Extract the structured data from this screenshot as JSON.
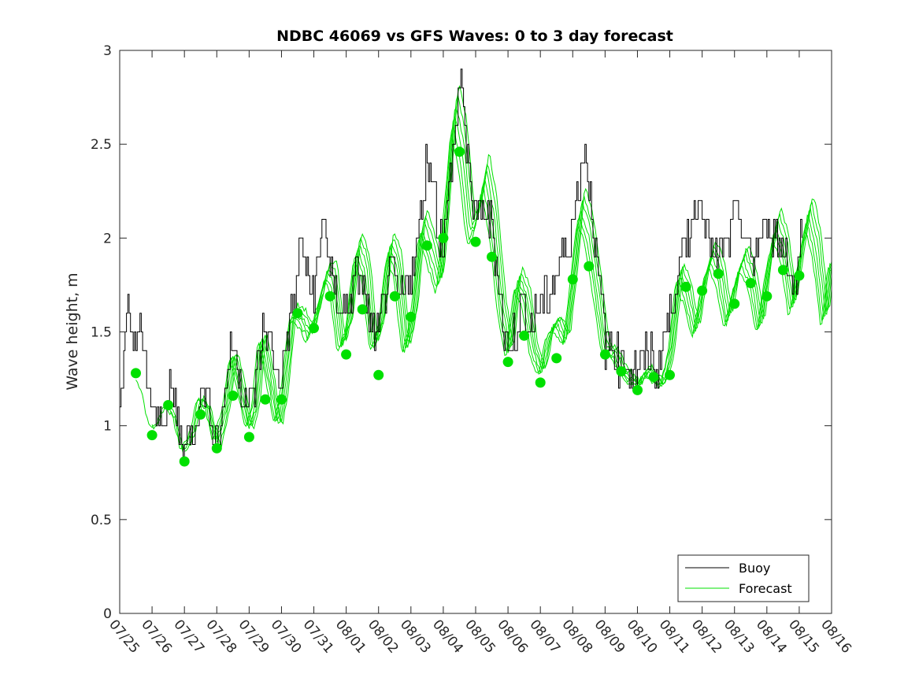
{
  "chart_data": {
    "type": "line",
    "title": "NDBC 46069 vs GFS Waves: 0 to 3 day forecast",
    "xlabel": "",
    "ylabel": "Wave height, m",
    "xlim": [
      0,
      22
    ],
    "ylim": [
      0,
      3
    ],
    "yticks": [
      0,
      0.5,
      1,
      1.5,
      2,
      2.5,
      3
    ],
    "ytick_labels": [
      "0",
      "0.5",
      "1",
      "1.5",
      "2",
      "2.5",
      "3"
    ],
    "xtick_labels": [
      "07/25",
      "07/26",
      "07/27",
      "07/28",
      "07/29",
      "07/30",
      "07/31",
      "08/01",
      "08/02",
      "08/03",
      "08/04",
      "08/05",
      "08/06",
      "08/07",
      "08/08",
      "08/09",
      "08/10",
      "08/11",
      "08/12",
      "08/13",
      "08/14",
      "08/15",
      "08/16"
    ],
    "legend": {
      "position": "bottom-right",
      "entries": [
        "Buoy",
        "Forecast"
      ]
    },
    "colors": {
      "buoy": "#000000",
      "forecast": "#00e000",
      "axes": "#262626"
    },
    "buoy_keypoints": [
      [
        0,
        1.2
      ],
      [
        0.1,
        1.3
      ],
      [
        0.25,
        1.6
      ],
      [
        0.4,
        1.45
      ],
      [
        0.6,
        1.5
      ],
      [
        0.8,
        1.3
      ],
      [
        1.0,
        1.05
      ],
      [
        1.2,
        1.0
      ],
      [
        1.3,
        1.1
      ],
      [
        1.45,
        1.05
      ],
      [
        1.6,
        1.2
      ],
      [
        1.8,
        1.0
      ],
      [
        2.0,
        0.9
      ],
      [
        2.2,
        0.95
      ],
      [
        2.4,
        1.1
      ],
      [
        2.6,
        1.2
      ],
      [
        2.8,
        1.1
      ],
      [
        2.95,
        0.95
      ],
      [
        3.1,
        0.95
      ],
      [
        3.3,
        1.25
      ],
      [
        3.5,
        1.45
      ],
      [
        3.7,
        1.25
      ],
      [
        3.9,
        1.15
      ],
      [
        4.0,
        1.1
      ],
      [
        4.2,
        1.25
      ],
      [
        4.4,
        1.5
      ],
      [
        4.6,
        1.45
      ],
      [
        4.8,
        1.3
      ],
      [
        5.0,
        1.25
      ],
      [
        5.2,
        1.5
      ],
      [
        5.45,
        1.75
      ],
      [
        5.6,
        2.0
      ],
      [
        5.8,
        1.75
      ],
      [
        6.0,
        1.7
      ],
      [
        6.15,
        1.85
      ],
      [
        6.3,
        2.2
      ],
      [
        6.4,
        1.95
      ],
      [
        6.6,
        1.7
      ],
      [
        6.8,
        1.65
      ],
      [
        7.0,
        1.6
      ],
      [
        7.2,
        1.75
      ],
      [
        7.4,
        1.8
      ],
      [
        7.6,
        1.65
      ],
      [
        7.8,
        1.5
      ],
      [
        7.95,
        1.45
      ],
      [
        8.1,
        1.6
      ],
      [
        8.3,
        1.8
      ],
      [
        8.5,
        1.75
      ],
      [
        8.7,
        1.65
      ],
      [
        8.9,
        1.8
      ],
      [
        9.1,
        1.85
      ],
      [
        9.3,
        2.15
      ],
      [
        9.5,
        2.45
      ],
      [
        9.7,
        2.3
      ],
      [
        9.85,
        2.05
      ],
      [
        10.0,
        1.95
      ],
      [
        10.2,
        2.3
      ],
      [
        10.4,
        2.6
      ],
      [
        10.55,
        2.95
      ],
      [
        10.7,
        2.45
      ],
      [
        10.9,
        2.2
      ],
      [
        11.1,
        2.1
      ],
      [
        11.3,
        2.15
      ],
      [
        11.5,
        2.05
      ],
      [
        11.7,
        1.8
      ],
      [
        11.85,
        1.5
      ],
      [
        12.0,
        1.4
      ],
      [
        12.2,
        1.5
      ],
      [
        12.4,
        1.65
      ],
      [
        12.6,
        1.55
      ],
      [
        12.8,
        1.55
      ],
      [
        13.0,
        1.65
      ],
      [
        13.2,
        1.7
      ],
      [
        13.4,
        1.75
      ],
      [
        13.6,
        1.9
      ],
      [
        13.8,
        1.95
      ],
      [
        14.0,
        2.1
      ],
      [
        14.2,
        2.3
      ],
      [
        14.35,
        2.5
      ],
      [
        14.5,
        2.3
      ],
      [
        14.7,
        1.95
      ],
      [
        14.9,
        1.65
      ],
      [
        15.0,
        1.45
      ],
      [
        15.2,
        1.45
      ],
      [
        15.4,
        1.35
      ],
      [
        15.6,
        1.35
      ],
      [
        15.8,
        1.3
      ],
      [
        16.0,
        1.3
      ],
      [
        16.2,
        1.35
      ],
      [
        16.4,
        1.4
      ],
      [
        16.6,
        1.3
      ],
      [
        16.8,
        1.45
      ],
      [
        17.0,
        1.6
      ],
      [
        17.2,
        1.8
      ],
      [
        17.4,
        1.9
      ],
      [
        17.6,
        2.05
      ],
      [
        17.8,
        2.2
      ],
      [
        18.0,
        2.2
      ],
      [
        18.2,
        2.0
      ],
      [
        18.4,
        1.85
      ],
      [
        18.6,
        1.9
      ],
      [
        18.8,
        2.0
      ],
      [
        19.0,
        2.1
      ],
      [
        19.2,
        2.1
      ],
      [
        19.4,
        1.95
      ],
      [
        19.6,
        1.9
      ],
      [
        19.8,
        2.0
      ],
      [
        20.0,
        2.05
      ],
      [
        20.2,
        2.05
      ],
      [
        20.4,
        1.95
      ],
      [
        20.6,
        1.95
      ],
      [
        20.8,
        1.75
      ],
      [
        21.0,
        1.85
      ],
      [
        21.1,
        2.2
      ]
    ],
    "forecast_markers": [
      [
        0.5,
        1.28
      ],
      [
        1.0,
        0.95
      ],
      [
        1.5,
        1.11
      ],
      [
        2.0,
        0.81
      ],
      [
        2.5,
        1.06
      ],
      [
        3.0,
        0.88
      ],
      [
        3.5,
        1.16
      ],
      [
        4.0,
        0.94
      ],
      [
        4.5,
        1.14
      ],
      [
        5.0,
        1.14
      ],
      [
        5.5,
        1.6
      ],
      [
        6.0,
        1.52
      ],
      [
        6.5,
        1.69
      ],
      [
        7.0,
        1.38
      ],
      [
        7.5,
        1.62
      ],
      [
        8.0,
        1.27
      ],
      [
        8.5,
        1.69
      ],
      [
        9.0,
        1.58
      ],
      [
        9.5,
        1.96
      ],
      [
        10.0,
        2.0
      ],
      [
        10.5,
        2.46
      ],
      [
        11.0,
        1.98
      ],
      [
        11.5,
        1.9
      ],
      [
        12.0,
        1.34
      ],
      [
        12.5,
        1.48
      ],
      [
        13.0,
        1.23
      ],
      [
        13.5,
        1.36
      ],
      [
        14.0,
        1.78
      ],
      [
        14.5,
        1.85
      ],
      [
        15.0,
        1.38
      ],
      [
        15.5,
        1.29
      ],
      [
        16.0,
        1.19
      ],
      [
        16.5,
        1.26
      ],
      [
        17.0,
        1.27
      ],
      [
        17.5,
        1.74
      ],
      [
        18.0,
        1.72
      ],
      [
        18.5,
        1.81
      ],
      [
        19.0,
        1.65
      ],
      [
        19.5,
        1.76
      ],
      [
        20.0,
        1.69
      ],
      [
        20.5,
        1.83
      ],
      [
        21.0,
        1.8
      ]
    ],
    "forecast_keypoints": [
      [
        0.5,
        1.3
      ],
      [
        0.8,
        1.2
      ],
      [
        1.0,
        1.0
      ],
      [
        1.2,
        0.98
      ],
      [
        1.5,
        1.12
      ],
      [
        1.75,
        1.05
      ],
      [
        2.0,
        0.85
      ],
      [
        2.3,
        0.95
      ],
      [
        2.5,
        1.15
      ],
      [
        2.75,
        1.1
      ],
      [
        3.0,
        0.9
      ],
      [
        3.3,
        1.1
      ],
      [
        3.5,
        1.38
      ],
      [
        3.7,
        1.25
      ],
      [
        4.0,
        0.98
      ],
      [
        4.2,
        1.1
      ],
      [
        4.4,
        1.48
      ],
      [
        4.6,
        1.3
      ],
      [
        4.9,
        1.0
      ],
      [
        5.1,
        1.2
      ],
      [
        5.35,
        1.6
      ],
      [
        5.6,
        1.58
      ],
      [
        5.9,
        1.48
      ],
      [
        6.1,
        1.6
      ],
      [
        6.4,
        1.82
      ],
      [
        6.6,
        1.8
      ],
      [
        6.85,
        1.42
      ],
      [
        7.1,
        1.55
      ],
      [
        7.35,
        1.97
      ],
      [
        7.6,
        1.85
      ],
      [
        7.85,
        1.42
      ],
      [
        8.1,
        1.55
      ],
      [
        8.35,
        1.97
      ],
      [
        8.6,
        1.85
      ],
      [
        8.85,
        1.4
      ],
      [
        9.1,
        1.6
      ],
      [
        9.35,
        2.08
      ],
      [
        9.6,
        1.95
      ],
      [
        9.9,
        1.75
      ],
      [
        10.1,
        2.15
      ],
      [
        10.35,
        2.7
      ],
      [
        10.6,
        2.5
      ],
      [
        10.85,
        2.05
      ],
      [
        11.05,
        2.1
      ],
      [
        11.3,
        2.35
      ],
      [
        11.55,
        2.1
      ],
      [
        11.8,
        1.65
      ],
      [
        12.05,
        1.38
      ],
      [
        12.3,
        1.78
      ],
      [
        12.55,
        1.7
      ],
      [
        12.8,
        1.4
      ],
      [
        13.05,
        1.28
      ],
      [
        13.3,
        1.5
      ],
      [
        13.55,
        1.55
      ],
      [
        13.8,
        1.45
      ],
      [
        14.05,
        1.82
      ],
      [
        14.25,
        2.18
      ],
      [
        14.5,
        2.05
      ],
      [
        14.75,
        1.75
      ],
      [
        15.0,
        1.42
      ],
      [
        15.3,
        1.38
      ],
      [
        15.55,
        1.3
      ],
      [
        15.8,
        1.25
      ],
      [
        16.05,
        1.22
      ],
      [
        16.3,
        1.3
      ],
      [
        16.55,
        1.25
      ],
      [
        16.8,
        1.22
      ],
      [
        17.05,
        1.4
      ],
      [
        17.3,
        1.82
      ],
      [
        17.55,
        1.7
      ],
      [
        17.8,
        1.5
      ],
      [
        18.05,
        1.75
      ],
      [
        18.3,
        1.92
      ],
      [
        18.55,
        1.82
      ],
      [
        18.8,
        1.55
      ],
      [
        19.05,
        1.78
      ],
      [
        19.3,
        1.9
      ],
      [
        19.55,
        1.78
      ],
      [
        19.8,
        1.52
      ],
      [
        20.05,
        1.85
      ],
      [
        20.3,
        2.08
      ],
      [
        20.55,
        1.95
      ],
      [
        20.8,
        1.62
      ],
      [
        21.05,
        1.9
      ],
      [
        21.3,
        2.15
      ],
      [
        21.55,
        1.95
      ],
      [
        21.8,
        1.55
      ],
      [
        22.0,
        1.9
      ]
    ]
  }
}
